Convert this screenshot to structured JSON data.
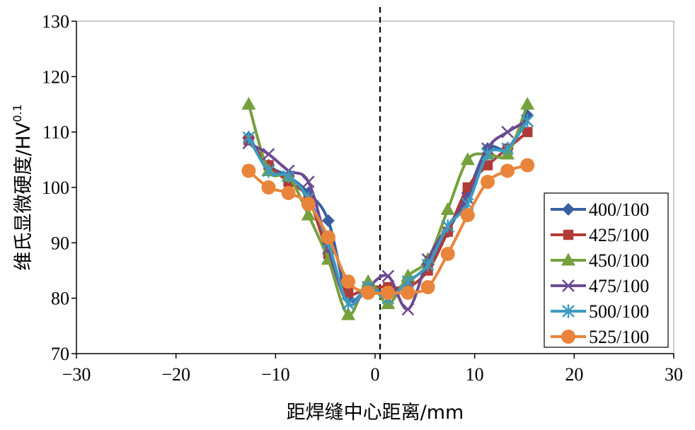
{
  "chart_data": {
    "type": "line",
    "title": "",
    "xlabel": "距焊缝中心距离/mm",
    "ylabel_main": "维氏显微硬度/HV",
    "ylabel_sup": "0.1",
    "xlim": [
      -30,
      30
    ],
    "ylim": [
      70,
      130
    ],
    "x_ticks": [
      -30,
      -20,
      -10,
      0,
      10,
      20,
      30
    ],
    "x_tick_labels": [
      "−30",
      "−20",
      "−10",
      "0",
      "10",
      "20",
      "30"
    ],
    "y_ticks": [
      70,
      80,
      90,
      100,
      110,
      120,
      130
    ],
    "y_tick_labels": [
      "70",
      "80",
      "90",
      "100",
      "110",
      "120",
      "130"
    ],
    "center_line_x": 0.5,
    "grid": false,
    "legend_position": "bottom-right",
    "series": [
      {
        "name": "400/100",
        "color": "#3a5fa0",
        "marker": "diamond",
        "x": [
          -12.7,
          -10.7,
          -8.7,
          -6.7,
          -4.7,
          -2.7,
          -0.7,
          1.3,
          3.3,
          5.3,
          7.3,
          9.3,
          11.3,
          13.3,
          15.3
        ],
        "y": [
          109,
          104,
          102,
          99,
          94,
          80,
          82,
          81,
          83,
          86,
          92,
          99,
          107,
          107,
          113
        ]
      },
      {
        "name": "425/100",
        "color": "#b03a37",
        "marker": "square",
        "x": [
          -12.7,
          -10.7,
          -8.7,
          -6.7,
          -4.7,
          -2.7,
          -0.7,
          1.3,
          3.3,
          5.3,
          7.3,
          9.3,
          11.3,
          13.3,
          15.3
        ],
        "y": [
          108.5,
          104,
          101,
          98,
          88,
          81,
          82,
          82,
          82,
          85,
          92,
          100,
          104,
          107,
          110
        ]
      },
      {
        "name": "450/100",
        "color": "#76a03c",
        "marker": "triangle",
        "x": [
          -12.7,
          -10.7,
          -8.7,
          -6.7,
          -4.7,
          -2.7,
          -0.7,
          1.3,
          3.3,
          5.3,
          7.3,
          9.3,
          11.3,
          13.3,
          15.3
        ],
        "y": [
          115,
          103,
          102,
          95,
          87,
          77,
          83,
          79,
          84,
          87,
          96,
          105,
          106,
          106,
          115
        ]
      },
      {
        "name": "475/100",
        "color": "#6c4a92",
        "marker": "x",
        "x": [
          -12.7,
          -10.7,
          -8.7,
          -6.7,
          -4.7,
          -2.7,
          -0.7,
          1.3,
          3.3,
          5.3,
          7.3,
          9.3,
          11.3,
          13.3,
          15.3
        ],
        "y": [
          108,
          106,
          103,
          101,
          89,
          79,
          82,
          84,
          78,
          87,
          93,
          98,
          107,
          110,
          112
        ]
      },
      {
        "name": "500/100",
        "color": "#3d9bbf",
        "marker": "asterisk",
        "x": [
          -12.7,
          -10.7,
          -8.7,
          -6.7,
          -4.7,
          -2.7,
          -0.7,
          1.3,
          3.3,
          5.3,
          7.3,
          9.3,
          11.3,
          13.3,
          15.3
        ],
        "y": [
          109,
          103,
          102,
          98,
          90,
          79,
          82,
          80,
          83,
          86,
          93,
          97,
          106,
          107,
          112
        ]
      },
      {
        "name": "525/100",
        "color": "#e9853a",
        "marker": "circle",
        "x": [
          -12.7,
          -10.7,
          -8.7,
          -6.7,
          -4.7,
          -2.7,
          -0.7,
          1.3,
          3.3,
          5.3,
          7.3,
          9.3,
          11.3,
          13.3,
          15.3
        ],
        "y": [
          103,
          100,
          99,
          97,
          91,
          83,
          81,
          81,
          81,
          82,
          88,
          95,
          101,
          103,
          104
        ]
      }
    ]
  }
}
